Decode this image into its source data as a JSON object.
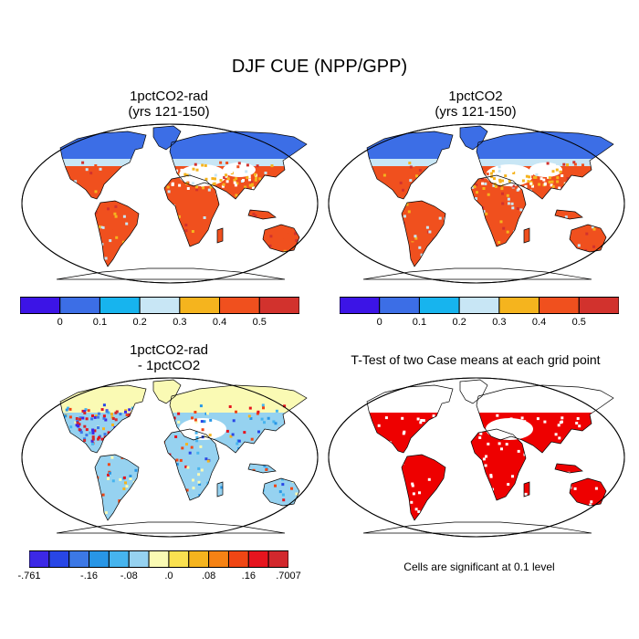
{
  "title": "DJF CUE (NPP/GPP)",
  "panels": [
    {
      "id": "p1",
      "title_line1": "1pctCO2-rad",
      "title_line2": "(yrs 121-150)",
      "scheme": "cue"
    },
    {
      "id": "p2",
      "title_line1": "1pctCO2",
      "title_line2": "(yrs 121-150)",
      "scheme": "cue"
    },
    {
      "id": "p3",
      "title_line1": "1pctCO2-rad",
      "title_line2": "- 1pctCO2",
      "scheme": "diff"
    },
    {
      "id": "p4",
      "title_line1": "T-Test of two Case means at each grid point",
      "title_line2": "",
      "scheme": "ttest"
    }
  ],
  "colorbar_cue": {
    "colors": [
      "#3c14e6",
      "#3c6ee6",
      "#17b4ee",
      "#c8e6f5",
      "#f5b41e",
      "#f0501e",
      "#d2322d"
    ],
    "labels": [
      "0",
      "0.1",
      "0.2",
      "0.3",
      "0.4",
      "0.5"
    ]
  },
  "colorbar_diff": {
    "colors": [
      "#3c28e6",
      "#2846e6",
      "#3c78e6",
      "#2896e6",
      "#46b4ee",
      "#96d2f0",
      "#fafab4",
      "#fae150",
      "#f5b41e",
      "#f58214",
      "#f04614",
      "#e6141e",
      "#d2282d"
    ],
    "labels": [
      "-.761",
      "-.16",
      "-.08",
      ".0",
      ".08",
      ".16",
      ".7007"
    ]
  },
  "significance_color": "#ee0000",
  "note": "Cells are significant at 0.1 level"
}
